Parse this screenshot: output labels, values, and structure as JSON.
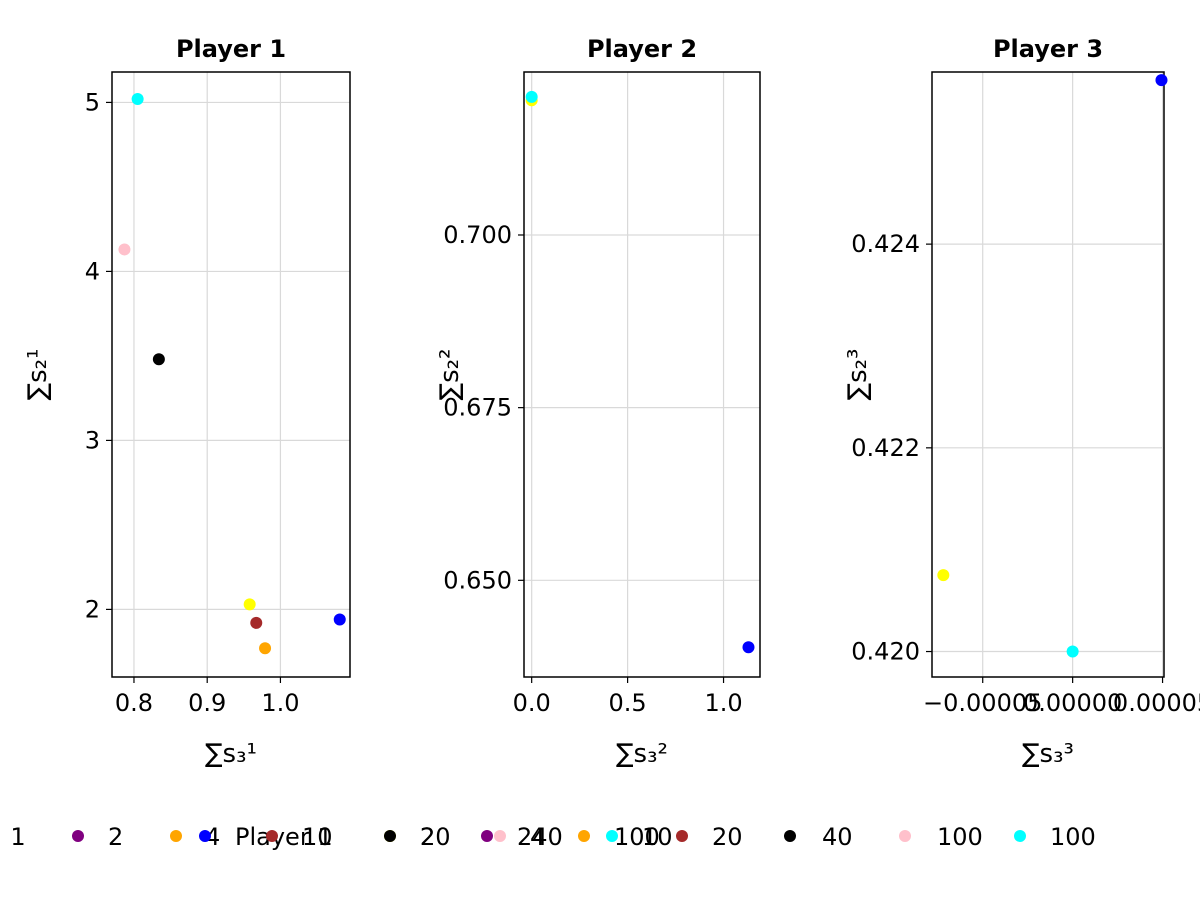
{
  "chart_data": [
    {
      "type": "scatter",
      "title": "Player 1",
      "xlabel": "∑s₃¹",
      "ylabel": "∑s₂¹",
      "xlim": [
        0.77,
        1.095
      ],
      "ylim": [
        1.6,
        5.18
      ],
      "xticks": [
        "0.8",
        "0.9",
        "1.0"
      ],
      "xtick_values": [
        0.8,
        0.9,
        1.0
      ],
      "yticks": [
        "2",
        "3",
        "4",
        "5"
      ],
      "ytick_values": [
        2,
        3,
        4,
        5
      ],
      "grid": true,
      "points": [
        {
          "x": 0.805,
          "y": 5.02,
          "color": "#00ffff"
        },
        {
          "x": 0.787,
          "y": 4.13,
          "color": "#ffc0cb"
        },
        {
          "x": 0.834,
          "y": 3.48,
          "color": "#000000"
        },
        {
          "x": 0.958,
          "y": 2.03,
          "color": "#ffff00"
        },
        {
          "x": 0.967,
          "y": 1.92,
          "color": "#a52a2a"
        },
        {
          "x": 0.979,
          "y": 1.77,
          "color": "#ffa500"
        },
        {
          "x": 1.081,
          "y": 1.94,
          "color": "#0000ff"
        }
      ]
    },
    {
      "type": "scatter",
      "title": "Player 2",
      "xlabel": "∑s₃²",
      "ylabel": "∑s₂²",
      "xlim": [
        -0.04,
        1.19
      ],
      "ylim": [
        0.636,
        0.7236
      ],
      "xticks": [
        "0.0",
        "0.5",
        "1.0"
      ],
      "xtick_values": [
        0.0,
        0.5,
        1.0
      ],
      "yticks": [
        "0.650",
        "0.675",
        "0.700"
      ],
      "ytick_values": [
        0.65,
        0.675,
        0.7
      ],
      "grid": true,
      "points": [
        {
          "x": 0.0,
          "y": 0.7195,
          "color": "#ffff00"
        },
        {
          "x": 0.0,
          "y": 0.72,
          "color": "#00ffff"
        },
        {
          "x": 1.13,
          "y": 0.6403,
          "color": "#0000ff"
        }
      ]
    },
    {
      "type": "scatter",
      "title": "Player 3",
      "xlabel": "∑s₃³",
      "ylabel": "∑s₂³",
      "xlim": [
        -7.82e-05,
        5.08e-05
      ],
      "ylim": [
        0.41975,
        0.42569
      ],
      "xticks": [
        "−0.00005",
        "0.00000",
        "0.00005"
      ],
      "xtick_values": [
        -5e-05,
        0.0,
        5e-05
      ],
      "yticks": [
        "0.420",
        "0.422",
        "0.424"
      ],
      "ytick_values": [
        0.42,
        0.422,
        0.424
      ],
      "grid": true,
      "points": [
        {
          "x": -7.19e-05,
          "y": 0.42075,
          "color": "#ffff00"
        },
        {
          "x": 0.0,
          "y": 0.42,
          "color": "#00ffff"
        },
        {
          "x": 4.94e-05,
          "y": 0.42561,
          "color": "#0000ff"
        }
      ]
    }
  ],
  "legend": {
    "placement": "bottom",
    "row1": [
      {
        "label": "1",
        "color": null
      },
      {
        "label": "2",
        "color": "#800080"
      },
      {
        "label": "4",
        "color": "#ffa500"
      },
      {
        "label": "Player 1",
        "color": "#0000ff"
      },
      {
        "label": "10",
        "color": "#a52a2a"
      },
      {
        "label": "20",
        "color": "#ffff00"
      },
      {
        "label": "2",
        "color": "#000000"
      },
      {
        "label": "240",
        "color": "#800080"
      },
      {
        "label": "4",
        "color": "#ffc0cb"
      },
      {
        "label": "100",
        "color": "#ffa500"
      },
      {
        "label": "10",
        "color": "#00ffff"
      },
      {
        "label": "20",
        "color": "#a52a2a"
      },
      {
        "label": "40",
        "color": "#000000"
      },
      {
        "label": "100",
        "color": "#ffc0cb"
      }
    ],
    "extra_marker_color": "#00ffff"
  }
}
